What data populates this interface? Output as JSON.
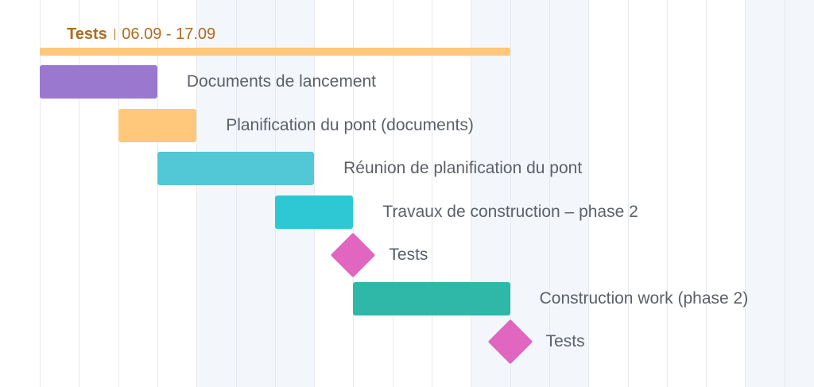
{
  "chart_data": {
    "type": "gantt",
    "summary": {
      "title": "Tests",
      "dates": "06.09 - 17.09",
      "color": "#ffc87a",
      "text_color": "#b06b1d"
    },
    "tasks": [
      {
        "label": "Documents de lancement",
        "kind": "bar",
        "start_day": 0,
        "end_day": 3,
        "color": "#9b78cf"
      },
      {
        "label": "Planification du pont (documents)",
        "kind": "bar",
        "start_day": 2,
        "end_day": 4,
        "color": "#ffc87a"
      },
      {
        "label": "Réunion de planification du pont",
        "kind": "bar",
        "start_day": 3,
        "end_day": 7,
        "color": "#52c7d6"
      },
      {
        "label": "Travaux de construction – phase 2",
        "kind": "bar",
        "start_day": 6,
        "end_day": 8,
        "color": "#2ec8d4"
      },
      {
        "label": "Tests",
        "kind": "milestone",
        "day": 8,
        "color": "#e066c0"
      },
      {
        "label": "Construction work (phase 2)",
        "kind": "bar",
        "start_day": 8,
        "end_day": 12,
        "color": "#2fb8a8"
      },
      {
        "label": "Tests",
        "kind": "milestone",
        "day": 12,
        "color": "#e066c0"
      }
    ]
  }
}
